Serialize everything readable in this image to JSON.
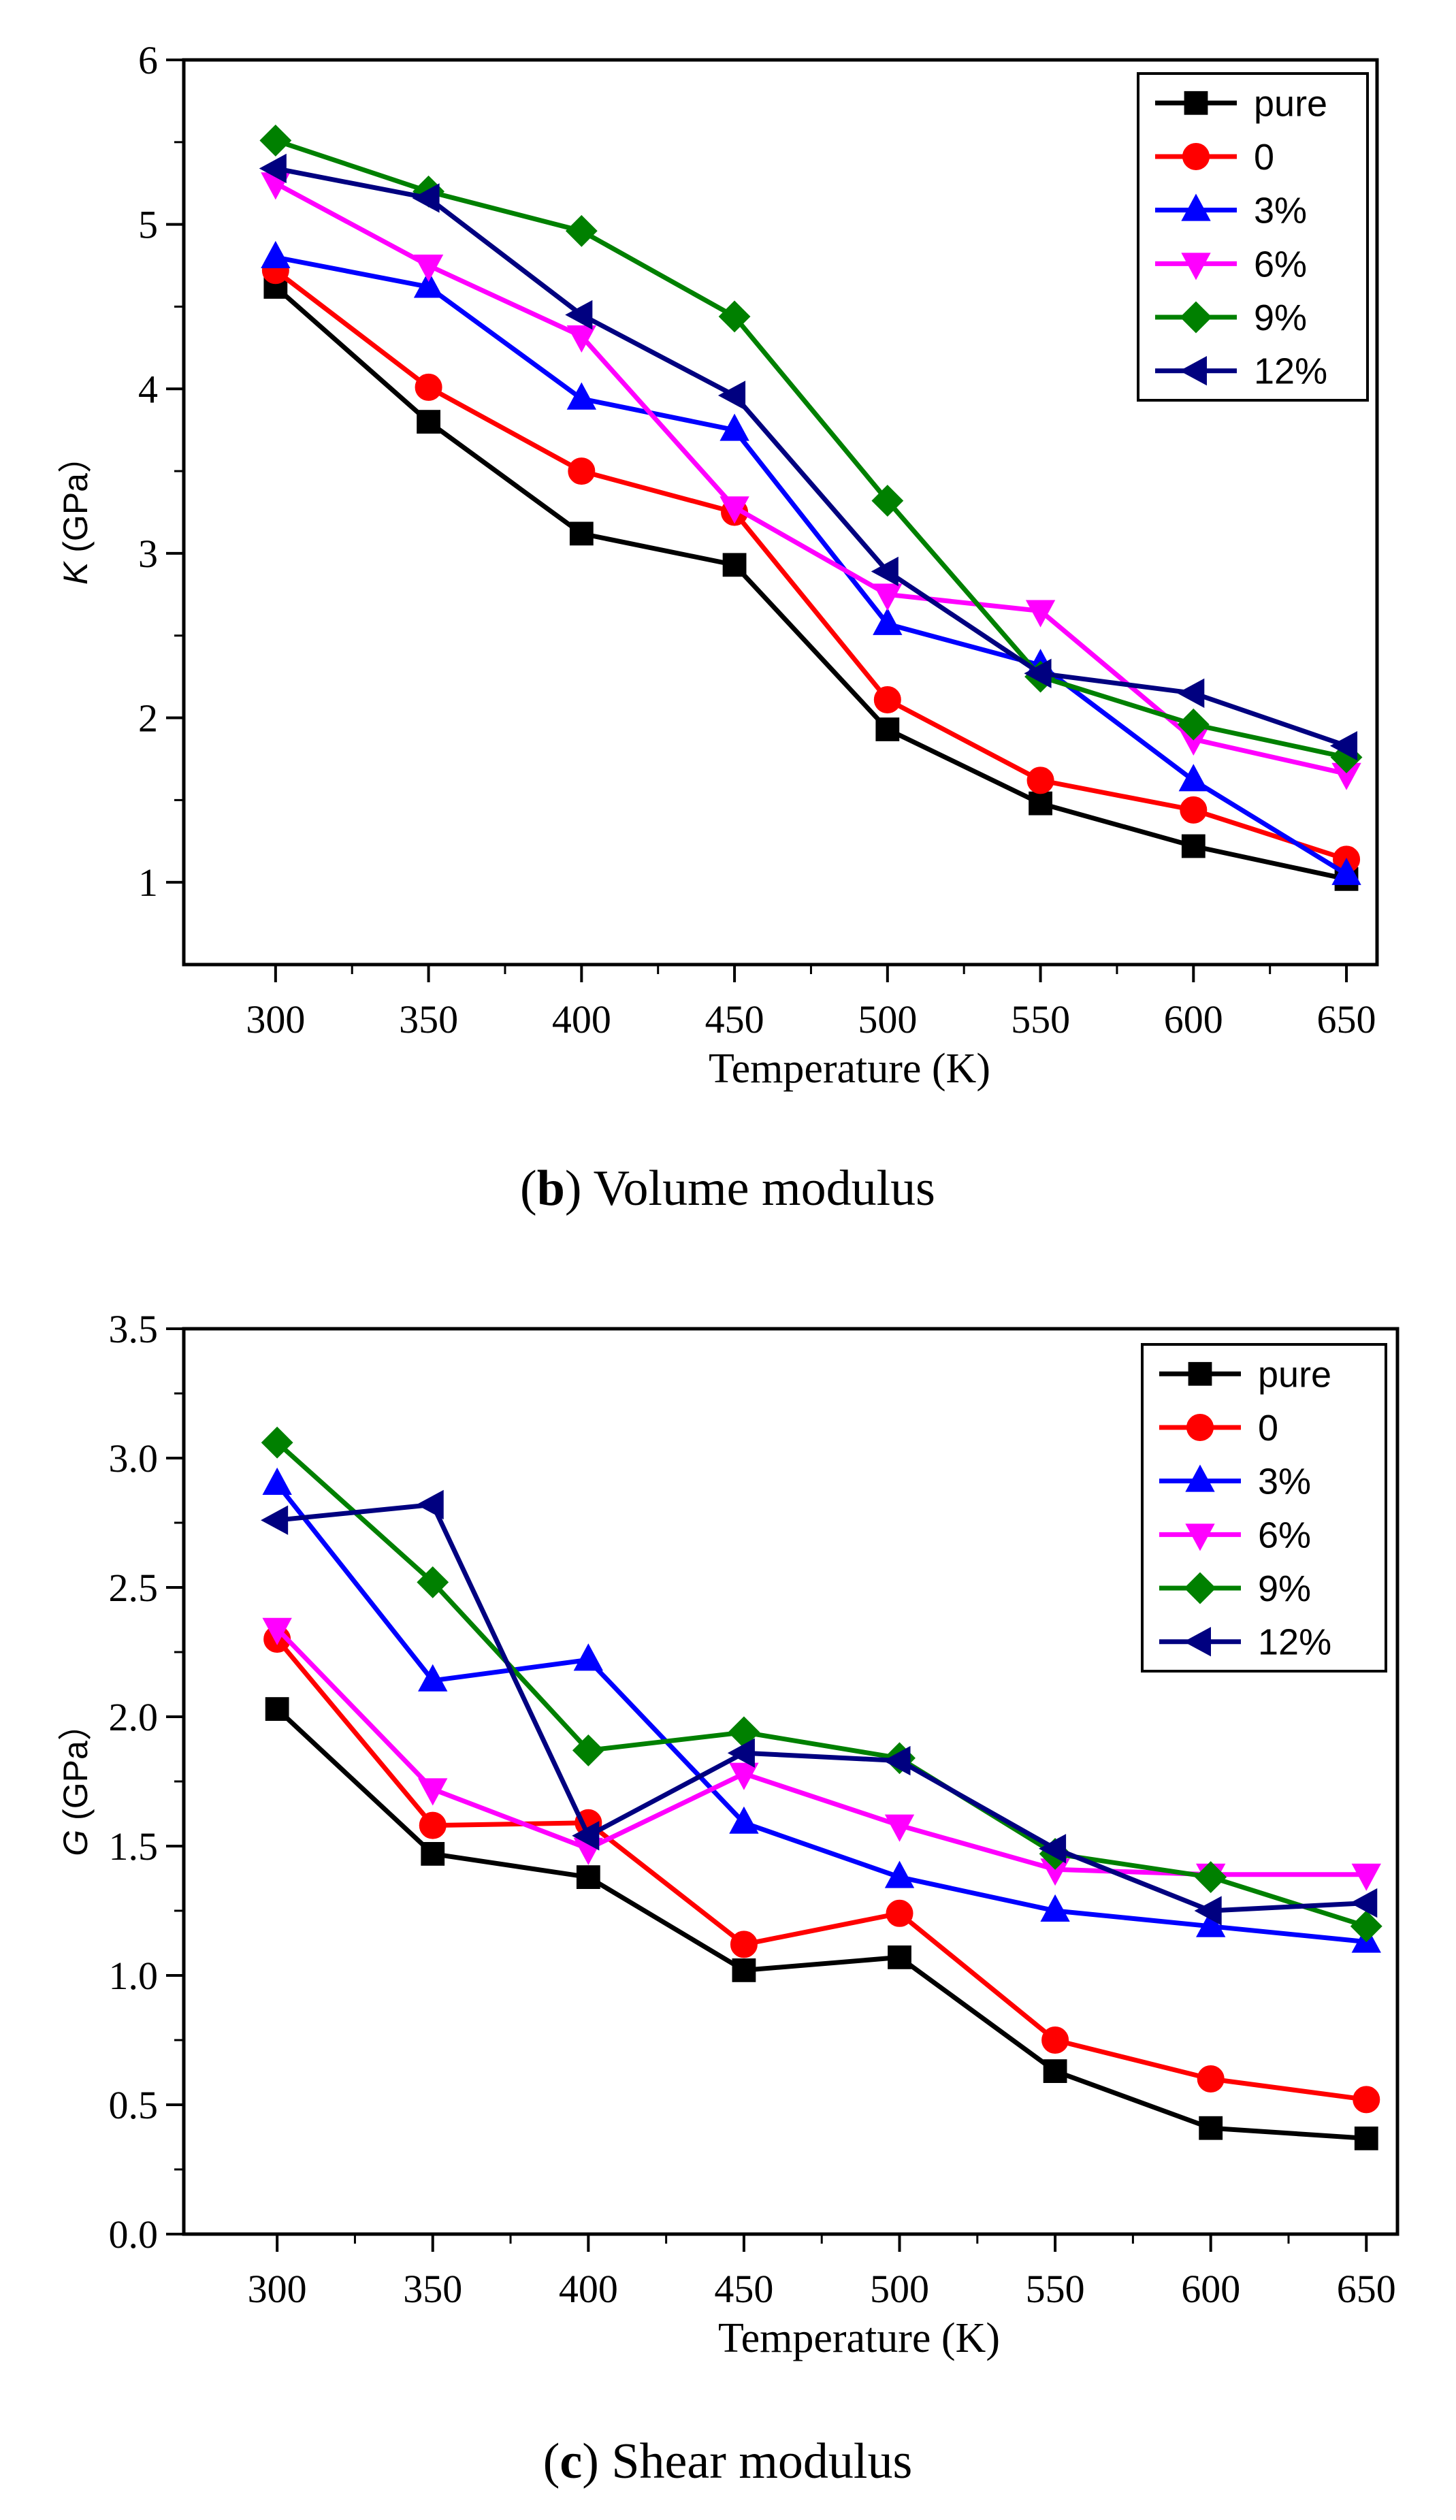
{
  "chart_data": [
    {
      "type": "line",
      "panel": "b",
      "caption_letter": "b",
      "caption_text": "Volume modulus",
      "xlabel": "Temperature (K)",
      "ylabel_symbol": "K",
      "ylabel_unit": "(GPa）",
      "x": [
        300,
        350,
        400,
        450,
        500,
        550,
        600,
        650
      ],
      "xlim": [
        270,
        660
      ],
      "ylim": [
        0.5,
        6
      ],
      "yticks": [
        1,
        2,
        3,
        4,
        5,
        6
      ],
      "ytick_labels": [
        "1",
        "2",
        "3",
        "4",
        "5",
        "6"
      ],
      "legend_position": "top-right",
      "series": [
        {
          "name": "pure",
          "color": "#000000",
          "marker": "square",
          "values": [
            4.62,
            3.8,
            3.12,
            2.93,
            1.93,
            1.48,
            1.22,
            1.02
          ]
        },
        {
          "name": "0",
          "color": "#ff0000",
          "marker": "circle",
          "values": [
            4.72,
            4.01,
            3.5,
            3.25,
            2.11,
            1.62,
            1.44,
            1.14
          ]
        },
        {
          "name": "3%",
          "color": "#0000ff",
          "marker": "triangle-up",
          "values": [
            4.8,
            4.62,
            3.94,
            3.75,
            2.57,
            2.32,
            1.62,
            1.05
          ]
        },
        {
          "name": "6%",
          "color": "#ff00ff",
          "marker": "triangle-down",
          "values": [
            5.25,
            4.75,
            4.32,
            3.28,
            2.75,
            2.65,
            1.87,
            1.66
          ]
        },
        {
          "name": "9%",
          "color": "#008000",
          "marker": "diamond",
          "values": [
            5.51,
            5.2,
            4.96,
            4.44,
            3.32,
            2.25,
            1.96,
            1.76
          ]
        },
        {
          "name": "12%",
          "color": "#000080",
          "marker": "triangle-left",
          "values": [
            5.34,
            5.16,
            4.45,
            3.96,
            2.89,
            2.27,
            2.15,
            1.83
          ]
        }
      ]
    },
    {
      "type": "line",
      "panel": "c",
      "caption_letter": "c",
      "caption_text": "Shear modulus",
      "xlabel": "Temperature (K)",
      "ylabel_symbol": "G",
      "ylabel_unit": "(GPa）",
      "x": [
        300,
        350,
        400,
        450,
        500,
        550,
        600,
        650
      ],
      "xlim": [
        270,
        660
      ],
      "ylim": [
        0,
        3.5
      ],
      "yticks": [
        0,
        0.5,
        1,
        1.5,
        2,
        2.5,
        3,
        3.5
      ],
      "ytick_labels": [
        "0.0",
        "0.5",
        "1.0",
        "1.5",
        "2.0",
        "2.5",
        "3.0",
        "3.5"
      ],
      "legend_position": "top-right",
      "series": [
        {
          "name": "pure",
          "color": "#000000",
          "marker": "square",
          "values": [
            2.03,
            1.47,
            1.38,
            1.02,
            1.07,
            0.63,
            0.41,
            0.37
          ]
        },
        {
          "name": "0",
          "color": "#ff0000",
          "marker": "circle",
          "values": [
            2.3,
            1.58,
            1.59,
            1.12,
            1.24,
            0.75,
            0.6,
            0.52
          ]
        },
        {
          "name": "3%",
          "color": "#0000ff",
          "marker": "triangle-up",
          "values": [
            2.9,
            2.14,
            2.22,
            1.59,
            1.38,
            1.25,
            1.19,
            1.13
          ]
        },
        {
          "name": "6%",
          "color": "#ff00ff",
          "marker": "triangle-down",
          "values": [
            2.34,
            1.72,
            1.49,
            1.78,
            1.58,
            1.41,
            1.39,
            1.39
          ]
        },
        {
          "name": "9%",
          "color": "#008000",
          "marker": "diamond",
          "values": [
            3.06,
            2.52,
            1.87,
            1.94,
            1.84,
            1.47,
            1.38,
            1.19
          ]
        },
        {
          "name": "12%",
          "color": "#000080",
          "marker": "triangle-left",
          "values": [
            2.76,
            2.82,
            1.54,
            1.86,
            1.83,
            1.49,
            1.25,
            1.28
          ]
        }
      ]
    }
  ]
}
